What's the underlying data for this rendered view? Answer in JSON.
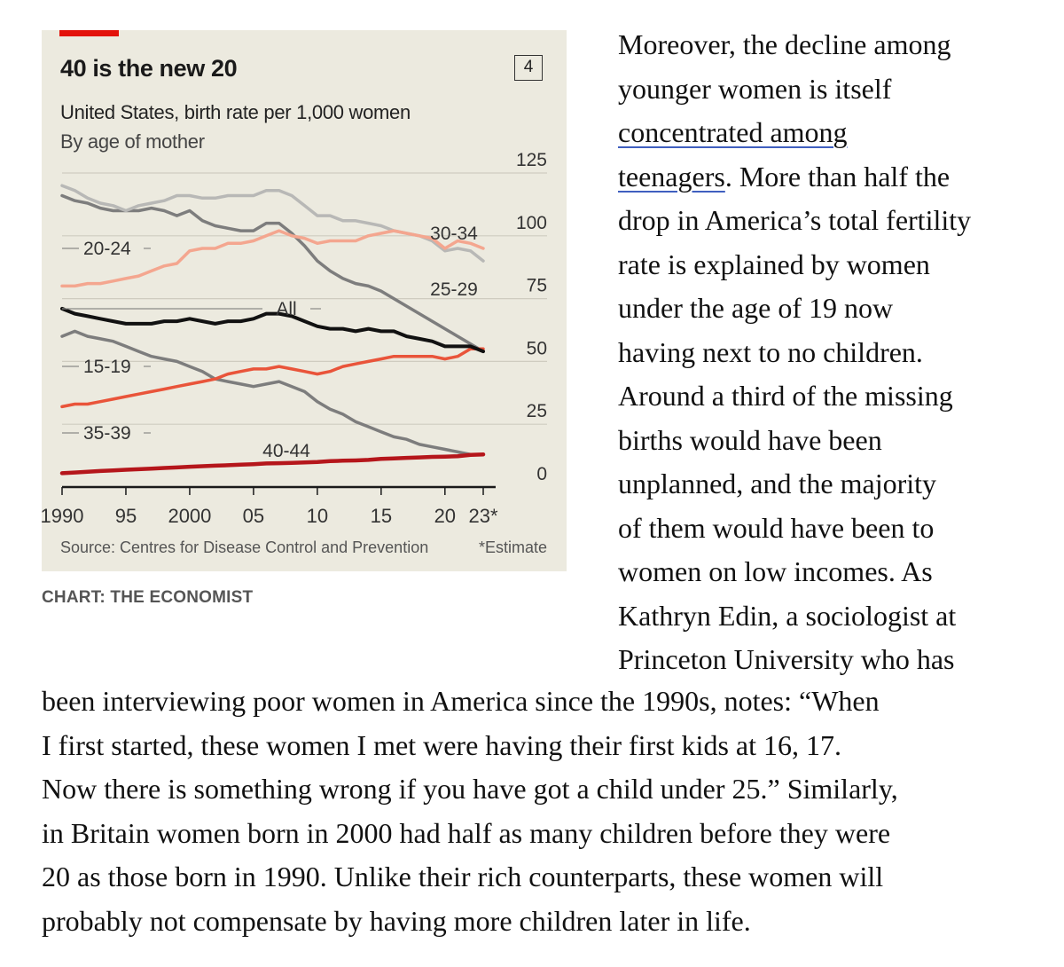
{
  "chart": {
    "title": "40 is the new 20",
    "number": "4",
    "subtitle": "United States, birth rate per 1,000 women",
    "subtitle2": "By age of mother",
    "source": "Source: Centres for Disease Control and Prevention",
    "note": "*Estimate",
    "credit": "CHART: THE ECONOMIST"
  },
  "chart_data": {
    "type": "line",
    "title": "40 is the new 20",
    "subtitle": "United States, birth rate per 1,000 women",
    "ylabel": "",
    "xlabel": "",
    "ylim": [
      0,
      125
    ],
    "xlim": [
      1990,
      2023
    ],
    "y_ticks": [
      0,
      25,
      50,
      75,
      100,
      125
    ],
    "y_tick_labels": [
      "0",
      "25",
      "50",
      "75",
      "100",
      "125"
    ],
    "x_ticks": [
      1990,
      1995,
      2000,
      2005,
      2010,
      2015,
      2020,
      2023
    ],
    "x_tick_labels": [
      "1990",
      "95",
      "2000",
      "05",
      "10",
      "15",
      "20",
      "23*"
    ],
    "x": [
      1990,
      1991,
      1992,
      1993,
      1994,
      1995,
      1996,
      1997,
      1998,
      1999,
      2000,
      2001,
      2002,
      2003,
      2004,
      2005,
      2006,
      2007,
      2008,
      2009,
      2010,
      2011,
      2012,
      2013,
      2014,
      2015,
      2016,
      2017,
      2018,
      2019,
      2020,
      2021,
      2022,
      2023
    ],
    "series": [
      {
        "name": "20-24",
        "label": "20-24",
        "color": "#7d7d7d",
        "width": 3.5,
        "values": [
          116,
          114,
          113,
          111,
          110,
          110,
          110,
          111,
          110,
          108,
          110,
          106,
          104,
          103,
          102,
          102,
          105,
          105,
          101,
          96,
          90,
          86,
          83,
          81,
          80,
          78,
          75,
          72,
          69,
          66,
          63,
          60,
          57,
          54
        ]
      },
      {
        "name": "25-29",
        "label": "25-29",
        "color": "#b8b8b6",
        "width": 3.5,
        "values": [
          120,
          118,
          115,
          113,
          112,
          110,
          112,
          113,
          114,
          116,
          116,
          115,
          115,
          116,
          116,
          116,
          118,
          118,
          116,
          112,
          108,
          108,
          106,
          106,
          105,
          104,
          102,
          101,
          100,
          98,
          94,
          95,
          94,
          90
        ]
      },
      {
        "name": "30-34",
        "label": "30-34",
        "color": "#f4a68f",
        "width": 3.5,
        "values": [
          80,
          80,
          81,
          81,
          82,
          83,
          84,
          86,
          88,
          89,
          94,
          95,
          95,
          97,
          97,
          98,
          100,
          102,
          100,
          99,
          97,
          98,
          98,
          98,
          100,
          101,
          102,
          101,
          100,
          99,
          95,
          98,
          97,
          95
        ]
      },
      {
        "name": "All",
        "label": "All",
        "color": "#111111",
        "width": 4,
        "values": [
          71,
          69,
          68,
          67,
          66,
          65,
          65,
          65,
          66,
          66,
          67,
          66,
          65,
          66,
          66,
          67,
          69,
          69,
          68,
          66,
          64,
          63,
          63,
          62,
          63,
          62,
          62,
          60,
          59,
          58,
          56,
          56,
          56,
          54
        ]
      },
      {
        "name": "15-19",
        "label": "15-19",
        "color": "#7d7d7d",
        "width": 3.5,
        "values": [
          60,
          62,
          60,
          59,
          58,
          56,
          54,
          52,
          51,
          50,
          48,
          46,
          43,
          42,
          41,
          40,
          41,
          42,
          40,
          38,
          34,
          31,
          29,
          26,
          24,
          22,
          20,
          19,
          17,
          16,
          15,
          14,
          13,
          13
        ]
      },
      {
        "name": "35-39",
        "label": "35-39",
        "color": "#e9543a",
        "width": 3.5,
        "values": [
          32,
          33,
          33,
          34,
          35,
          36,
          37,
          38,
          39,
          40,
          41,
          42,
          43,
          45,
          46,
          47,
          47,
          48,
          47,
          46,
          45,
          46,
          48,
          49,
          50,
          51,
          52,
          52,
          52,
          52,
          51,
          52,
          55,
          55
        ]
      },
      {
        "name": "40-44",
        "label": "40-44",
        "color": "#b5161b",
        "width": 4.5,
        "values": [
          5.5,
          5.8,
          6.1,
          6.4,
          6.6,
          6.9,
          7.1,
          7.3,
          7.6,
          7.8,
          8.1,
          8.3,
          8.5,
          8.7,
          8.9,
          9.1,
          9.4,
          9.5,
          9.6,
          9.8,
          10.0,
          10.3,
          10.5,
          10.6,
          10.8,
          11.2,
          11.4,
          11.6,
          11.8,
          12.0,
          12.1,
          12.3,
          12.8,
          13.0
        ]
      }
    ]
  },
  "article": {
    "col_lines": [
      {
        "text": "Moreover, the decline among"
      },
      {
        "text": "younger women is itself"
      },
      {
        "link": "concentrated among"
      },
      {
        "link": "teenagers",
        "text": ". More than half the"
      },
      {
        "text": "drop in America’s total fertility"
      },
      {
        "text": "rate is explained by women"
      },
      {
        "text": "under the age of 19 now"
      },
      {
        "text": "having next to no children."
      },
      {
        "text": "Around a third of the missing"
      },
      {
        "text": "births would have been"
      },
      {
        "text": "unplanned, and the majority"
      },
      {
        "text": "of them would have been to"
      },
      {
        "text": "women on low incomes. As"
      },
      {
        "text": "Kathryn Edin, a sociologist at"
      },
      {
        "text": "Princeton University who has"
      }
    ],
    "full_lines": [
      "been interviewing poor women in America since the 1990s, notes: “When",
      "I first started, these women I met were having their first kids at 16, 17.",
      "Now there is something wrong if you have got a child under 25.” Similarly,",
      "in Britain women born in 2000 had half as many children before they were",
      "20 as those born in 1990. Unlike their rich counterparts, these women will",
      "probably not compensate by having more children later in life."
    ]
  }
}
